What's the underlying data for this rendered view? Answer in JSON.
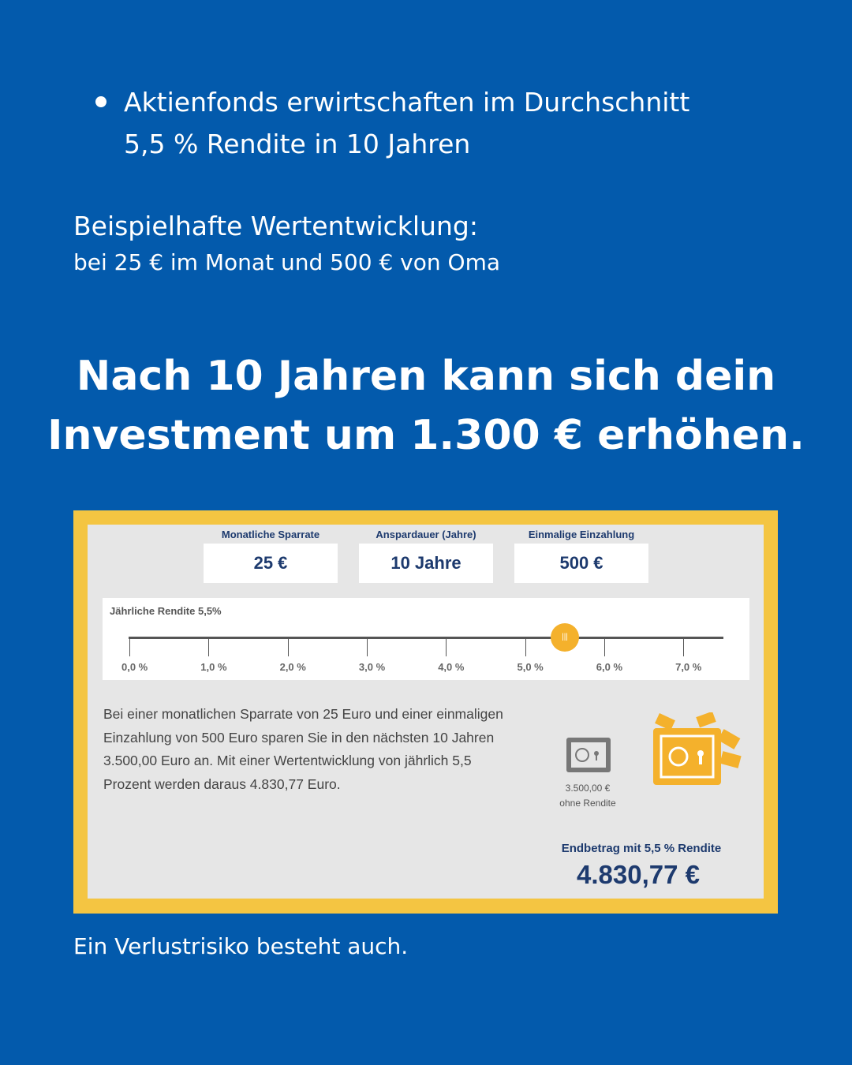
{
  "intro": {
    "bullet": [
      "Aktienfonds erwirtschaften im Durchschnitt",
      "5,5 % Rendite in 10 Jahren"
    ],
    "heading": "Beispielhafte Wertentwicklung:",
    "subheading": "bei 25 € im Monat und 500 € von Oma"
  },
  "headline": [
    "Nach 10 Jahren kann sich dein",
    "Investment um 1.300 € erhöhen."
  ],
  "calculator": {
    "fields": [
      {
        "label": "Monatliche Sparrate",
        "value": "25 €"
      },
      {
        "label": "Anspardauer (Jahre)",
        "value": "10 Jahre"
      },
      {
        "label": "Einmalige Einzahlung",
        "value": "500 €"
      }
    ],
    "slider": {
      "label": "Jährliche Rendite 5,5%",
      "ticks": [
        "0,0 %",
        "1,0 %",
        "2,0 %",
        "3,0 %",
        "4,0 %",
        "5,0 %",
        "6,0 %",
        "7,0 %"
      ]
    },
    "description": [
      "Bei einer monatlichen Sparrate von 25 Euro und einer einmaligen",
      "Einzahlung von 500 Euro sparen Sie in den nächsten 10 Jahren",
      "3.500,00 Euro an. Mit einer Wertentwicklung von jährlich 5,5",
      "Prozent werden daraus 4.830,77 Euro."
    ],
    "no_return": [
      "3.500,00 €",
      "ohne Rendite"
    ],
    "result_label": "Endbetrag mit 5,5 % Rendite",
    "result_value": "4.830,77 €"
  },
  "footer": "Ein Verlustrisiko besteht auch."
}
